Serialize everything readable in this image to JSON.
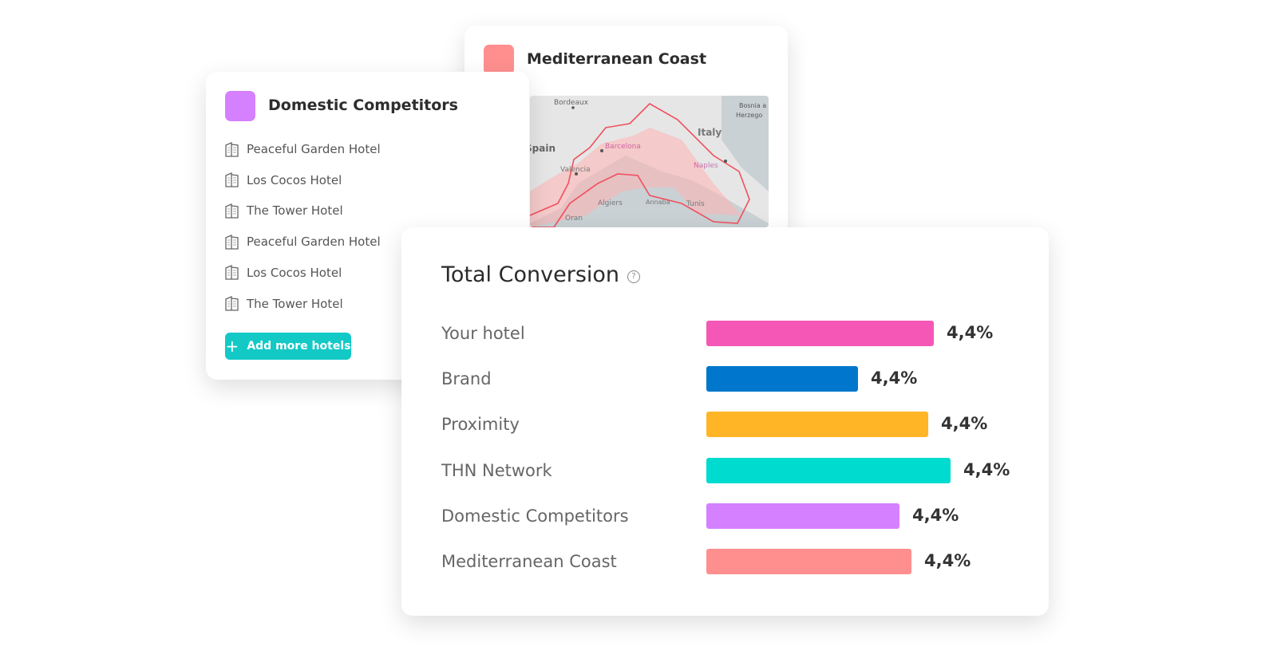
{
  "mediterranean_card": {
    "title": "Mediterranean Coast",
    "color": "#ff8f8f",
    "map_labels": {
      "bordeaux": "Bordeaux",
      "bosnia": "Bosnia a",
      "herzego": "Herzego",
      "italy": "Italy",
      "spain": "Spain",
      "barcelona": "Barcelona",
      "valencia": "Valencia",
      "naples": "Naples",
      "algiers": "Algiers",
      "annaba": "Annaba",
      "tunis": "Tunis",
      "oran": "Oran"
    }
  },
  "domestic_card": {
    "title": "Domestic Competitors",
    "color": "#d580ff",
    "hotels": [
      {
        "name": "Peaceful Garden Hotel",
        "icon": "building-icon"
      },
      {
        "name": "Los Cocos Hotel",
        "icon": "building-icon"
      },
      {
        "name": "The Tower Hotel",
        "icon": "building-icon"
      },
      {
        "name": "Peaceful Garden Hotel",
        "icon": "building-icon"
      },
      {
        "name": "Los Cocos Hotel",
        "icon": "building-icon"
      },
      {
        "name": "The Tower Hotel",
        "icon": "building-icon"
      }
    ],
    "add_button": {
      "label": "Add more hotels",
      "icon": "plus-icon",
      "color": "#12c9c6"
    }
  },
  "conversion_card": {
    "title": "Total Conversion",
    "help_icon": "question-circle-icon",
    "rows": [
      {
        "label": "Your hotel",
        "value": "4,4%",
        "color": "#f557b7",
        "fill": 0.93
      },
      {
        "label": "Brand",
        "value": "4,4%",
        "color": "#0077cc",
        "fill": 0.62
      },
      {
        "label": "Proximity",
        "value": "4,4%",
        "color": "#ffb526",
        "fill": 0.91
      },
      {
        "label": "THN Network",
        "value": "4,4%",
        "color": "#00dbcf",
        "fill": 1.0
      },
      {
        "label": "Domestic Competitors",
        "value": "4,4%",
        "color": "#d580ff",
        "fill": 0.79
      },
      {
        "label": "Mediterranean Coast",
        "value": "4,4%",
        "color": "#ff8f8f",
        "fill": 0.84
      }
    ]
  }
}
